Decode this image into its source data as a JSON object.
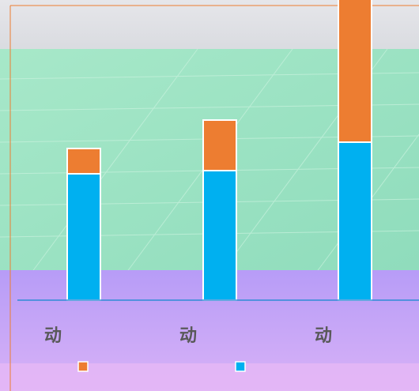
{
  "colors": {
    "series_top": "#ED7D31",
    "series_bottom": "#00B0F0",
    "axis": "#2E8BD6",
    "frame": "#ED7D31",
    "category_text": "#595959"
  },
  "chart_data": {
    "type": "bar",
    "stacked": true,
    "categories": [
      "动",
      "动",
      "动"
    ],
    "series": [
      {
        "values": [
          40,
          41,
          50
        ]
      },
      {
        "values": [
          8,
          16,
          50
        ]
      }
    ],
    "ylim": [
      0,
      100
    ],
    "grid": false,
    "legend_position": "bottom"
  }
}
